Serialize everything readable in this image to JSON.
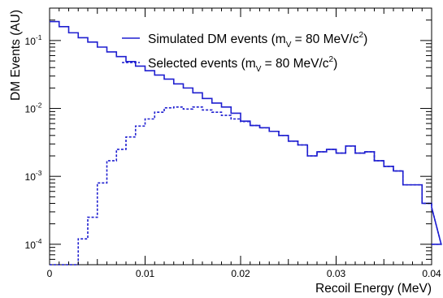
{
  "chart_data": {
    "type": "line",
    "title": "",
    "xlabel": "Recoil Energy (MeV)",
    "ylabel": "DM Events (AU)",
    "xlim": [
      0,
      0.04
    ],
    "ylim": [
      5e-05,
      0.3
    ],
    "yscale": "log",
    "grid": false,
    "legend_position": "top-right",
    "bin_width": 0.001,
    "x_ticks": [
      {
        "value": 0,
        "label": "0"
      },
      {
        "value": 0.01,
        "label": "0.01"
      },
      {
        "value": 0.02,
        "label": "0.02"
      },
      {
        "value": 0.03,
        "label": "0.03"
      },
      {
        "value": 0.04,
        "label": "0.04"
      }
    ],
    "y_ticks": [
      {
        "value": 0.0001,
        "base": "10",
        "exp": "-4"
      },
      {
        "value": 0.001,
        "base": "10",
        "exp": "-3"
      },
      {
        "value": 0.01,
        "base": "10",
        "exp": "-2"
      },
      {
        "value": 0.1,
        "base": "10",
        "exp": "-1"
      }
    ],
    "series": [
      {
        "name": "Simulated DM events (m",
        "name_sub": "V",
        "name_mid": " = 80 MeV/c",
        "name_sup": "2",
        "name_end": ")",
        "style": "solid",
        "color": "#1f1fd0",
        "values": [
          0.19,
          0.16,
          0.13,
          0.11,
          0.095,
          0.08,
          0.068,
          0.058,
          0.049,
          0.042,
          0.036,
          0.031,
          0.027,
          0.023,
          0.02,
          0.017,
          0.014,
          0.012,
          0.0105,
          0.0085,
          0.0065,
          0.0056,
          0.0052,
          0.0046,
          0.004,
          0.0033,
          0.0029,
          0.002,
          0.0023,
          0.0025,
          0.0022,
          0.0028,
          0.0022,
          0.0023,
          0.0017,
          0.0014,
          0.0012,
          0.00075,
          0.00075,
          0.0004,
          0.00035,
          0.0001
        ]
      },
      {
        "name": "Selected events (m",
        "name_sub": "V",
        "name_mid": " = 80 MeV/c",
        "name_sup": "2",
        "name_end": ")",
        "style": "dashed",
        "color": "#1f1fd0",
        "values": [
          5e-05,
          5e-05,
          5e-05,
          0.00012,
          0.00025,
          0.0008,
          0.0017,
          0.0025,
          0.0038,
          0.0055,
          0.007,
          0.0088,
          0.0102,
          0.0105,
          0.0098,
          0.0105,
          0.0095,
          0.0088,
          0.0079,
          0.007,
          0.0064,
          0.0056,
          0.0052,
          0.0046,
          0.004,
          0.0033,
          0.0029,
          0.002,
          0.0023,
          0.0025,
          0.0022,
          0.0028,
          0.0022,
          0.0023,
          0.0017,
          0.0014,
          0.0012,
          0.00075,
          0.00075,
          0.0004,
          0.00035,
          0.0001
        ]
      }
    ]
  }
}
